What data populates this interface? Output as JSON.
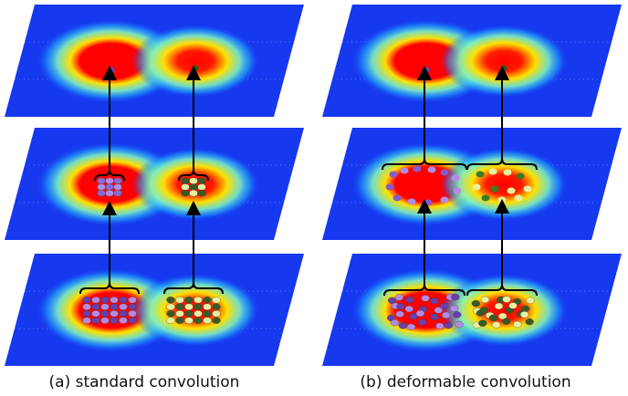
{
  "captions": {
    "left": "(a) standard convolution",
    "right": "(b) deformable convolution"
  }
}
